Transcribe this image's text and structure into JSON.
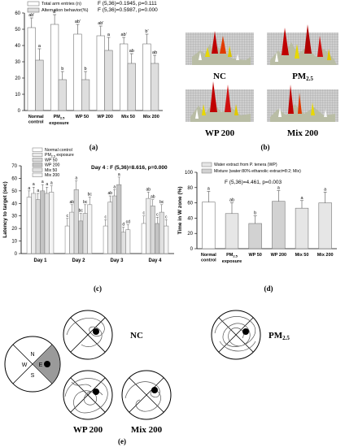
{
  "panels": {
    "a": {
      "label": "(a)"
    },
    "b": {
      "label": "(b)",
      "tiles": [
        "NC",
        "PM",
        "WP 200",
        "Mix 200"
      ],
      "pm_sub": "2.5"
    },
    "c": {
      "label": "(c)"
    },
    "d": {
      "label": "(d)"
    },
    "e": {
      "label": "(e)",
      "quadrant_letters": {
        "n": "N",
        "w": "W",
        "e": "E",
        "s": "S"
      },
      "tiles": [
        "NC",
        "PM",
        "WP 200",
        "Mix 200"
      ],
      "pm_sub": "2.5"
    }
  },
  "chart_data": [
    {
      "id": "a",
      "type": "bar",
      "categories": [
        [
          "Normal",
          "control"
        ],
        [
          "PM2.5",
          "exposure"
        ],
        [
          "WP 50"
        ],
        [
          "WP 200"
        ],
        [
          "Mix 50"
        ],
        [
          "Mix 200"
        ]
      ],
      "series": [
        {
          "name": "Total arm entries (n)",
          "values": [
            51,
            53,
            47,
            46,
            41,
            41
          ],
          "errors": [
            6,
            6,
            6,
            6,
            4,
            6
          ],
          "letters": [
            "ab'",
            "a'",
            "ab'",
            "ab'",
            "ab'",
            "b'"
          ]
        },
        {
          "name": "Alternation behavior(%)",
          "values": [
            31,
            19,
            19,
            37,
            29,
            29
          ],
          "errors": [
            7,
            5,
            5,
            8,
            6,
            5
          ],
          "letters": [
            "a",
            "b",
            "b",
            "a",
            "ab",
            "ab"
          ]
        }
      ],
      "ylim": [
        0,
        60
      ],
      "yticks": [
        0,
        10,
        20,
        30,
        40,
        50,
        60
      ],
      "annotations": [
        "F (5,36)=0.1945, p=0.111",
        "F (5,36)=0.5987, p=0.000"
      ]
    },
    {
      "id": "c",
      "type": "bar",
      "ylabel": "Latency to target (sec)",
      "categories": [
        "Day 1",
        "Day 2",
        "Day 3",
        "Day 4"
      ],
      "series": [
        {
          "name": "Normal control",
          "values": [
            45,
            22,
            22,
            24
          ],
          "errors": [
            5,
            6,
            5,
            6
          ],
          "letters": [
            "a",
            "c",
            "c",
            "c"
          ]
        },
        {
          "name": "PM2.5 exposure",
          "values": [
            48,
            33,
            41,
            44
          ],
          "errors": [
            5,
            6,
            5,
            5
          ],
          "letters": [
            "a",
            "ab",
            "ab",
            "ab"
          ]
        },
        {
          "name": "WP 50",
          "values": [
            43,
            51,
            46,
            38
          ],
          "errors": [
            5,
            7,
            5,
            5
          ],
          "letters": [
            "a",
            "a",
            "a",
            "ab"
          ]
        },
        {
          "name": "WP 200",
          "values": [
            50,
            26,
            55,
            24
          ],
          "errors": [
            5,
            6,
            6,
            5
          ],
          "letters": [
            "a",
            "bc",
            "a",
            "c"
          ]
        },
        {
          "name": "Mix 50",
          "values": [
            48,
            32,
            17,
            33
          ],
          "errors": [
            5,
            7,
            4,
            6
          ],
          "letters": [
            "a",
            "bc",
            "d",
            "bc"
          ]
        },
        {
          "name": "Mix 200",
          "values": [
            49,
            39,
            19,
            22
          ],
          "errors": [
            5,
            6,
            4,
            5
          ],
          "letters": [
            "a",
            "bc",
            "cd",
            "c"
          ]
        }
      ],
      "ylim": [
        0,
        70
      ],
      "yticks": [
        0,
        10,
        20,
        30,
        40,
        50,
        60,
        70
      ],
      "annotations": [
        "Day 4 : F (5,36)=8.616, p=0.000"
      ]
    },
    {
      "id": "d",
      "type": "bar",
      "ylabel": "Time in W zone (%)",
      "categories": [
        [
          "Normal",
          "control"
        ],
        [
          "PM2.5",
          "exposure"
        ],
        [
          "WP 50"
        ],
        [
          "WP 200"
        ],
        [
          "Mix 50"
        ],
        [
          "Mix 200"
        ]
      ],
      "values": [
        61,
        46,
        33,
        62,
        53,
        60
      ],
      "errors": [
        14,
        14,
        10,
        14,
        10,
        14
      ],
      "letters": [
        "a",
        "ab",
        "b",
        "a",
        "a",
        "a"
      ],
      "legend": [
        "Water extract from P. tenera (WP)",
        "Mixture (water:80% ethanolic extract=8:2; Mix)"
      ],
      "ylim": [
        0,
        100
      ],
      "yticks": [
        0,
        20,
        40,
        60,
        80,
        100
      ],
      "annotations": [
        "F (5,36)=4.461, p=0.003"
      ]
    }
  ]
}
